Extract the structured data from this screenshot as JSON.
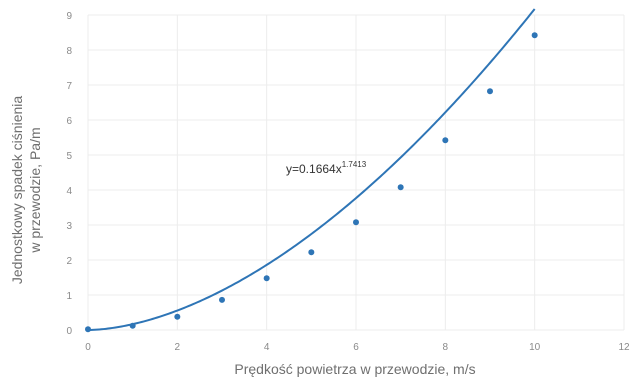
{
  "chart_data": {
    "type": "scatter",
    "xlabel": "Prędkość powietrza w przewodzie, m/s",
    "ylabel_line1": "Jednostkowy spadek ciśnienia",
    "ylabel_line2": "w przewodzie, Pa/m",
    "xlim": [
      0,
      12
    ],
    "ylim": [
      0,
      9
    ],
    "x_ticks": [
      "0",
      "2",
      "4",
      "6",
      "8",
      "10",
      "12"
    ],
    "y_ticks": [
      "0",
      "1",
      "2",
      "3",
      "4",
      "5",
      "6",
      "7",
      "8",
      "9"
    ],
    "grid": true,
    "series": [
      {
        "x": [
          0,
          1,
          2,
          3,
          4,
          5,
          6,
          7,
          8,
          9,
          10
        ],
        "y": [
          0.02,
          0.12,
          0.38,
          0.86,
          1.48,
          2.22,
          3.08,
          4.08,
          5.42,
          6.82,
          8.42
        ],
        "color": "#2e75b6"
      }
    ],
    "trendline": {
      "type": "power",
      "coefficient": 0.1664,
      "exponent": 1.7413,
      "equation_base": "y=0.1664x",
      "equation_exponent": "1.7413",
      "color": "#2e75b6"
    }
  }
}
